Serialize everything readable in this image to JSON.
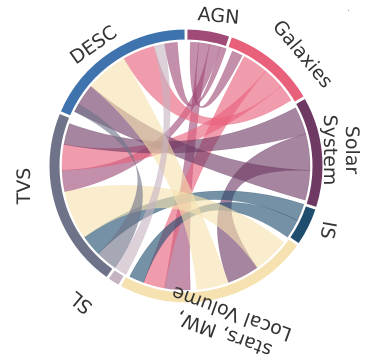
{
  "chart_data": {
    "type": "chord",
    "groups": [
      {
        "id": "agn",
        "label": "AGN",
        "color": "#a04a78",
        "arc": [
          0,
          19
        ]
      },
      {
        "id": "galaxies",
        "label": "Galaxies",
        "color": "#e9607a",
        "arc": [
          19,
          60
        ]
      },
      {
        "id": "solar",
        "label": "Solar System",
        "color": "#6e3a64",
        "arc": [
          60,
          108
        ]
      },
      {
        "id": "is",
        "label": "IS",
        "color": "#1f4d6e",
        "arc": [
          108,
          125
        ]
      },
      {
        "id": "stars",
        "label": "stars, MW, Local Volume",
        "color": "#f6e2b0",
        "arc": [
          125,
          209
        ]
      },
      {
        "id": "sl",
        "label": "SL",
        "color": "#c6b3c1",
        "arc": [
          209,
          215
        ]
      },
      {
        "id": "tvs",
        "label": "TVS",
        "color": "#6f7389",
        "arc": [
          215,
          293
        ]
      },
      {
        "id": "desc",
        "label": "DESC",
        "color": "#3e73ad",
        "arc": [
          293,
          360
        ]
      }
    ],
    "label_lines": {
      "solar": [
        "Solar",
        "System"
      ],
      "stars": [
        "stars, MW,",
        "Local Volume"
      ]
    },
    "chords": [
      {
        "source": "agn",
        "target": "galaxies",
        "src_arc": [
          2,
          6
        ],
        "tgt_arc": [
          22,
          27
        ],
        "color": "#a04a78"
      },
      {
        "source": "agn",
        "target": "stars",
        "src_arc": [
          6,
          11
        ],
        "tgt_arc": [
          178,
          190
        ],
        "color": "#a04a78"
      },
      {
        "source": "agn",
        "target": "tvs",
        "src_arc": [
          11,
          16
        ],
        "tgt_arc": [
          258,
          268
        ],
        "color": "#a04a78"
      },
      {
        "source": "agn",
        "target": "desc",
        "src_arc": [
          16,
          19
        ],
        "tgt_arc": [
          350,
          356
        ],
        "color": "#a04a78"
      },
      {
        "source": "galaxies",
        "target": "stars",
        "src_arc": [
          28,
          40
        ],
        "tgt_arc": [
          190,
          200
        ],
        "color": "#e9607a"
      },
      {
        "source": "galaxies",
        "target": "tvs",
        "src_arc": [
          40,
          50
        ],
        "tgt_arc": [
          268,
          280
        ],
        "color": "#e9607a"
      },
      {
        "source": "galaxies",
        "target": "desc",
        "src_arc": [
          50,
          58
        ],
        "tgt_arc": [
          330,
          345
        ],
        "color": "#e9607a"
      },
      {
        "source": "solar",
        "target": "tvs",
        "src_arc": [
          62,
          75
        ],
        "tgt_arc": [
          280,
          290
        ],
        "color": "#6e3a64"
      },
      {
        "source": "solar",
        "target": "stars",
        "src_arc": [
          75,
          92
        ],
        "tgt_arc": [
          145,
          160
        ],
        "color": "#6e3a64"
      },
      {
        "source": "solar",
        "target": "desc",
        "src_arc": [
          92,
          106
        ],
        "tgt_arc": [
          296,
          310
        ],
        "color": "#6e3a64"
      },
      {
        "source": "is",
        "target": "tvs",
        "src_arc": [
          108,
          116
        ],
        "tgt_arc": [
          225,
          235
        ],
        "color": "#1f4d6e"
      },
      {
        "source": "is",
        "target": "stars",
        "src_arc": [
          116,
          125
        ],
        "tgt_arc": [
          200,
          207
        ],
        "color": "#1f4d6e"
      },
      {
        "source": "stars",
        "target": "tvs",
        "src_arc": [
          128,
          145
        ],
        "tgt_arc": [
          235,
          258
        ],
        "color": "#f6e2b0"
      },
      {
        "source": "stars",
        "target": "desc",
        "src_arc": [
          160,
          175
        ],
        "tgt_arc": [
          310,
          330
        ],
        "color": "#f6e2b0"
      },
      {
        "source": "sl",
        "target": "desc",
        "src_arc": [
          209,
          215
        ],
        "tgt_arc": [
          345,
          350
        ],
        "color": "#c6b3c1"
      },
      {
        "source": "tvs",
        "target": "desc",
        "src_arc": [
          215,
          225
        ],
        "tgt_arc": [
          300,
          296
        ],
        "color": "#6f7389"
      }
    ]
  },
  "corner_mark": "·"
}
